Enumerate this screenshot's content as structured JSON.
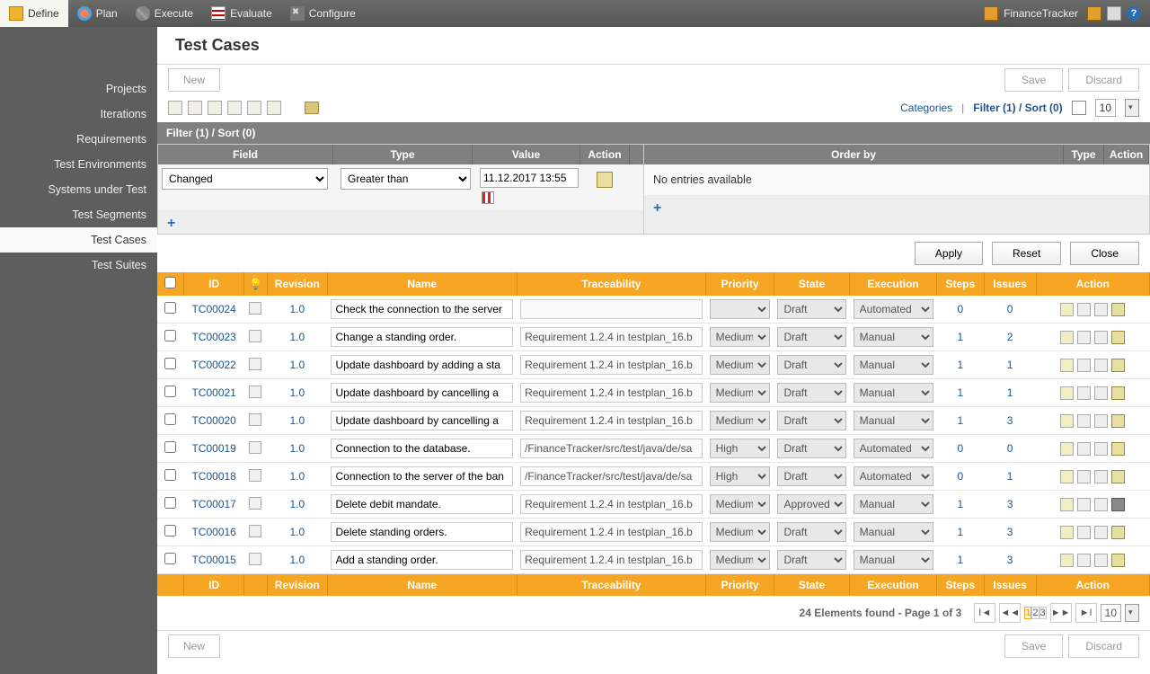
{
  "topbar": {
    "tabs": [
      {
        "label": "Define",
        "icon": "define",
        "active": true
      },
      {
        "label": "Plan",
        "icon": "plan",
        "active": false
      },
      {
        "label": "Execute",
        "icon": "execute",
        "active": false
      },
      {
        "label": "Evaluate",
        "icon": "evaluate",
        "active": false
      },
      {
        "label": "Configure",
        "icon": "configure",
        "active": false
      }
    ],
    "appName": "FinanceTracker"
  },
  "sidebar": {
    "items": [
      "Projects",
      "Iterations",
      "Requirements",
      "Test Environments",
      "Systems under Test",
      "Test Segments",
      "Test Cases",
      "Test Suites"
    ],
    "activeIndex": 6
  },
  "page": {
    "title": "Test Cases",
    "newBtn": "New",
    "saveBtn": "Save",
    "discardBtn": "Discard"
  },
  "toolbar2": {
    "categories": "Categories",
    "filterSort": "Filter (1) / Sort (0)",
    "pageSize": "10"
  },
  "filterHeader": "Filter (1) / Sort (0)",
  "filter": {
    "cols": {
      "field": "Field",
      "type": "Type",
      "value": "Value",
      "action": "Action"
    },
    "row": {
      "field": "Changed",
      "type": "Greater than",
      "value": "11.12.2017 13:55"
    }
  },
  "orderBy": {
    "cols": {
      "order": "Order by",
      "type": "Type",
      "action": "Action"
    },
    "empty": "No entries available"
  },
  "buttons": {
    "apply": "Apply",
    "reset": "Reset",
    "close": "Close"
  },
  "table": {
    "headers": {
      "id": "ID",
      "revision": "Revision",
      "name": "Name",
      "trace": "Traceability",
      "priority": "Priority",
      "state": "State",
      "execution": "Execution",
      "steps": "Steps",
      "issues": "Issues",
      "action": "Action"
    },
    "rows": [
      {
        "id": "TC00024",
        "rev": "1.0",
        "name": "Check the connection to the server",
        "trace": "",
        "pri": "",
        "state": "Draft",
        "exec": "Automated",
        "steps": "0",
        "issues": "0",
        "bin": "light"
      },
      {
        "id": "TC00023",
        "rev": "1.0",
        "name": "Change a standing order.",
        "trace": "Requirement 1.2.4 in testplan_16.b",
        "pri": "Medium",
        "state": "Draft",
        "exec": "Manual",
        "steps": "1",
        "issues": "2",
        "bin": "light"
      },
      {
        "id": "TC00022",
        "rev": "1.0",
        "name": "Update dashboard by adding a sta",
        "trace": "Requirement 1.2.4 in testplan_16.b",
        "pri": "Medium",
        "state": "Draft",
        "exec": "Manual",
        "steps": "1",
        "issues": "1",
        "bin": "light"
      },
      {
        "id": "TC00021",
        "rev": "1.0",
        "name": "Update dashboard by cancelling a",
        "trace": "Requirement 1.2.4 in testplan_16.b",
        "pri": "Medium",
        "state": "Draft",
        "exec": "Manual",
        "steps": "1",
        "issues": "1",
        "bin": "light"
      },
      {
        "id": "TC00020",
        "rev": "1.0",
        "name": "Update dashboard by cancelling a",
        "trace": "Requirement 1.2.4 in testplan_16.b",
        "pri": "Medium",
        "state": "Draft",
        "exec": "Manual",
        "steps": "1",
        "issues": "3",
        "bin": "light"
      },
      {
        "id": "TC00019",
        "rev": "1.0",
        "name": "Connection to the database.",
        "trace": "/FinanceTracker/src/test/java/de/sa",
        "pri": "High",
        "state": "Draft",
        "exec": "Automated",
        "steps": "0",
        "issues": "0",
        "bin": "light"
      },
      {
        "id": "TC00018",
        "rev": "1.0",
        "name": "Connection to the server of the ban",
        "trace": "/FinanceTracker/src/test/java/de/sa",
        "pri": "High",
        "state": "Draft",
        "exec": "Automated",
        "steps": "0",
        "issues": "1",
        "bin": "light"
      },
      {
        "id": "TC00017",
        "rev": "1.0",
        "name": "Delete debit mandate.",
        "trace": "Requirement 1.2.4 in testplan_16.b",
        "pri": "Medium",
        "state": "Approved",
        "exec": "Manual",
        "steps": "1",
        "issues": "3",
        "bin": "dark"
      },
      {
        "id": "TC00016",
        "rev": "1.0",
        "name": "Delete standing orders.",
        "trace": "Requirement 1.2.4 in testplan_16.b",
        "pri": "Medium",
        "state": "Draft",
        "exec": "Manual",
        "steps": "1",
        "issues": "3",
        "bin": "light"
      },
      {
        "id": "TC00015",
        "rev": "1.0",
        "name": "Add a standing order.",
        "trace": "Requirement 1.2.4 in testplan_16.b",
        "pri": "Medium",
        "state": "Draft",
        "exec": "Manual",
        "steps": "1",
        "issues": "3",
        "bin": "light"
      }
    ]
  },
  "pager": {
    "info": "24 Elements found - Page 1 of 3",
    "pages": [
      "1",
      "2",
      "3"
    ],
    "active": "1",
    "size": "10"
  }
}
